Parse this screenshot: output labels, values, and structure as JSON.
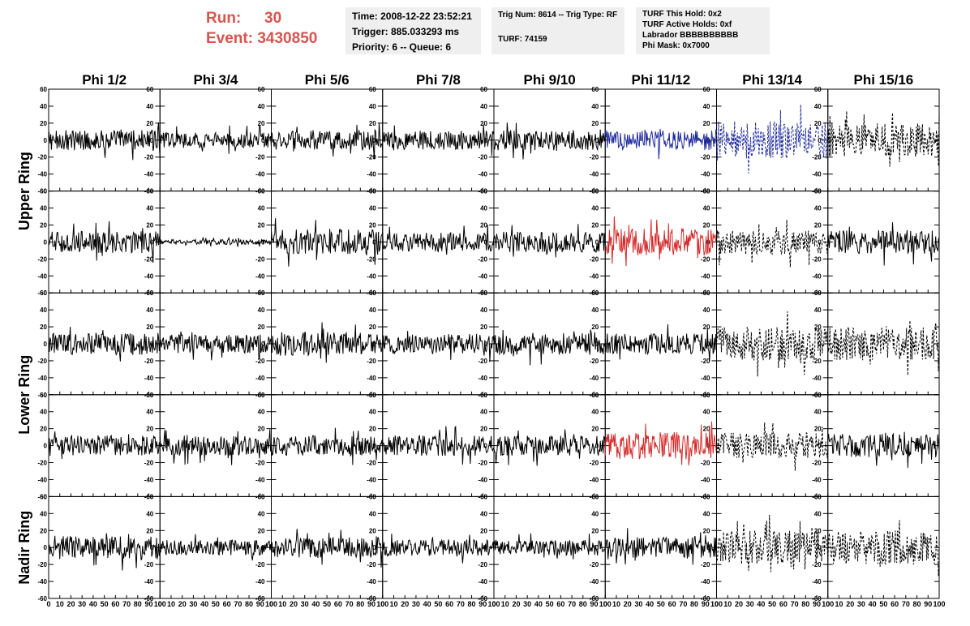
{
  "header": {
    "run_label": "Run:",
    "run_value": "30",
    "event_label": "Event:",
    "event_value": "3430850",
    "time": "Time: 2008-12-22 23:52:21",
    "trigger": "Trigger: 885.033293 ms",
    "priority": "Priority: 6 -- Queue: 6",
    "trig_num": "Trig Num: 8614 -- Trig Type: RF",
    "turf_id": "TURF: 74159",
    "turf_hold": "TURF This Hold: 0x2",
    "turf_active": "TURF Active Holds: 0xf",
    "labrador": "Labrador BBBBBBBBBB",
    "phi_mask": "Phi Mask: 0x7000"
  },
  "colors": {
    "accent": "#d9534f",
    "info_bg": "#efefef",
    "trace_default": "#000000",
    "trace_blue": "#1f2a9c",
    "trace_red": "#d42a2a"
  },
  "chart_data": {
    "type": "line",
    "columns": [
      "Phi 1/2",
      "Phi 3/4",
      "Phi 5/6",
      "Phi 7/8",
      "Phi 9/10",
      "Phi 11/12",
      "Phi 13/14",
      "Phi 15/16"
    ],
    "rows": [
      "Upper Ring",
      "Lower Ring",
      "Nadir Ring"
    ],
    "x_ticks": [
      "0",
      "10",
      "20",
      "30",
      "40",
      "50",
      "60",
      "70",
      "80",
      "90",
      "100"
    ],
    "y_ticks": [
      "-60",
      "-40",
      "-20",
      "0",
      "20",
      "40",
      "60"
    ],
    "xlim": [
      0,
      100
    ],
    "ylim": [
      -60,
      60
    ],
    "panels": [
      {
        "row": 0,
        "col": 0,
        "amp": 12,
        "style": "solid",
        "color": "#000000"
      },
      {
        "row": 0,
        "col": 1,
        "amp": 9,
        "style": "solid",
        "color": "#000000"
      },
      {
        "row": 0,
        "col": 2,
        "amp": 12,
        "style": "solid",
        "color": "#000000"
      },
      {
        "row": 0,
        "col": 3,
        "amp": 11,
        "style": "solid",
        "color": "#000000"
      },
      {
        "row": 0,
        "col": 4,
        "amp": 12,
        "style": "solid",
        "color": "#000000"
      },
      {
        "row": 0,
        "col": 5,
        "amp": 12,
        "style": "solid",
        "color": "#1f2a9c"
      },
      {
        "row": 0,
        "col": 6,
        "amp": 22,
        "style": "dashed",
        "color": "#1f2a9c"
      },
      {
        "row": 0,
        "col": 7,
        "amp": 20,
        "style": "dashed",
        "color": "#000000"
      },
      {
        "row": 1,
        "col": 0,
        "amp": 13,
        "style": "solid",
        "color": "#000000"
      },
      {
        "row": 1,
        "col": 1,
        "amp": 3,
        "style": "solid",
        "color": "#000000"
      },
      {
        "row": 1,
        "col": 2,
        "amp": 15,
        "style": "solid",
        "color": "#000000"
      },
      {
        "row": 1,
        "col": 3,
        "amp": 11,
        "style": "solid",
        "color": "#000000"
      },
      {
        "row": 1,
        "col": 4,
        "amp": 12,
        "style": "solid",
        "color": "#000000"
      },
      {
        "row": 1,
        "col": 5,
        "amp": 16,
        "style": "solid",
        "color": "#d42a2a"
      },
      {
        "row": 1,
        "col": 6,
        "amp": 15,
        "style": "dashed",
        "color": "#000000"
      },
      {
        "row": 1,
        "col": 7,
        "amp": 14,
        "style": "solid",
        "color": "#000000"
      },
      {
        "row": 2,
        "col": 0,
        "amp": 13,
        "style": "solid",
        "color": "#000000"
      },
      {
        "row": 2,
        "col": 1,
        "amp": 11,
        "style": "solid",
        "color": "#000000"
      },
      {
        "row": 2,
        "col": 2,
        "amp": 14,
        "style": "solid",
        "color": "#000000"
      },
      {
        "row": 2,
        "col": 3,
        "amp": 12,
        "style": "solid",
        "color": "#000000"
      },
      {
        "row": 2,
        "col": 4,
        "amp": 13,
        "style": "solid",
        "color": "#000000"
      },
      {
        "row": 2,
        "col": 5,
        "amp": 12,
        "style": "solid",
        "color": "#000000"
      },
      {
        "row": 2,
        "col": 6,
        "amp": 20,
        "style": "dashed",
        "color": "#000000"
      },
      {
        "row": 2,
        "col": 7,
        "amp": 20,
        "style": "dashed",
        "color": "#000000"
      },
      {
        "row": 3,
        "col": 0,
        "amp": 12,
        "style": "solid",
        "color": "#000000"
      },
      {
        "row": 3,
        "col": 1,
        "amp": 12,
        "style": "solid",
        "color": "#000000"
      },
      {
        "row": 3,
        "col": 2,
        "amp": 12,
        "style": "solid",
        "color": "#000000"
      },
      {
        "row": 3,
        "col": 3,
        "amp": 12,
        "style": "solid",
        "color": "#000000"
      },
      {
        "row": 3,
        "col": 4,
        "amp": 12,
        "style": "solid",
        "color": "#000000"
      },
      {
        "row": 3,
        "col": 5,
        "amp": 16,
        "style": "solid",
        "color": "#d42a2a"
      },
      {
        "row": 3,
        "col": 6,
        "amp": 15,
        "style": "dashed",
        "color": "#000000"
      },
      {
        "row": 3,
        "col": 7,
        "amp": 14,
        "style": "solid",
        "color": "#000000"
      },
      {
        "row": 4,
        "col": 0,
        "amp": 14,
        "style": "solid",
        "color": "#000000"
      },
      {
        "row": 4,
        "col": 1,
        "amp": 9,
        "style": "solid",
        "color": "#000000"
      },
      {
        "row": 4,
        "col": 2,
        "amp": 12,
        "style": "solid",
        "color": "#000000"
      },
      {
        "row": 4,
        "col": 3,
        "amp": 10,
        "style": "solid",
        "color": "#000000"
      },
      {
        "row": 4,
        "col": 4,
        "amp": 9,
        "style": "solid",
        "color": "#000000"
      },
      {
        "row": 4,
        "col": 5,
        "amp": 12,
        "style": "solid",
        "color": "#000000"
      },
      {
        "row": 4,
        "col": 6,
        "amp": 20,
        "style": "dashed",
        "color": "#000000"
      },
      {
        "row": 4,
        "col": 7,
        "amp": 20,
        "style": "dashed",
        "color": "#000000"
      }
    ]
  }
}
